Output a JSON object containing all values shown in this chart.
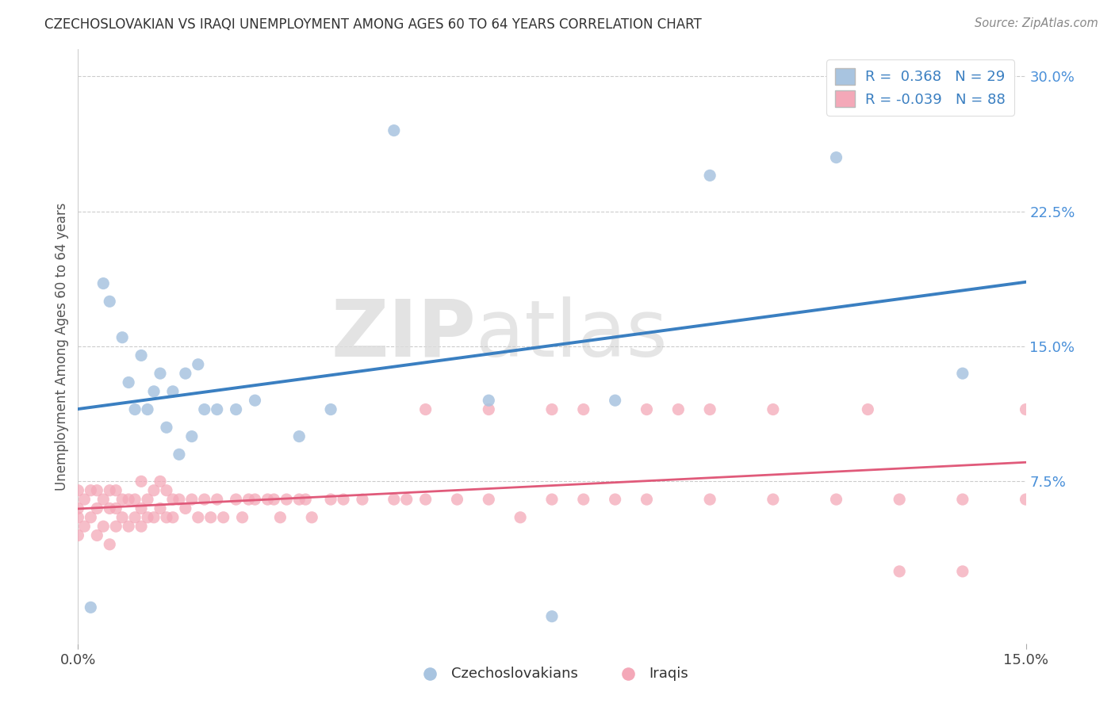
{
  "title": "CZECHOSLOVAKIAN VS IRAQI UNEMPLOYMENT AMONG AGES 60 TO 64 YEARS CORRELATION CHART",
  "source": "Source: ZipAtlas.com",
  "ylabel": "Unemployment Among Ages 60 to 64 years",
  "xlim": [
    0.0,
    0.15
  ],
  "ylim": [
    -0.015,
    0.315
  ],
  "ytick_vals": [
    0.075,
    0.15,
    0.225,
    0.3
  ],
  "ytick_labels": [
    "7.5%",
    "15.0%",
    "22.5%",
    "30.0%"
  ],
  "xtick_vals": [
    0.0,
    0.15
  ],
  "xtick_labels": [
    "0.0%",
    "15.0%"
  ],
  "R_czech": 0.368,
  "N_czech": 29,
  "R_iraqi": -0.039,
  "N_iraqi": 88,
  "color_czech": "#a8c4e0",
  "color_iraqi": "#f4a8b8",
  "line_color_czech": "#3a7fc1",
  "line_color_iraqi": "#e05a7a",
  "watermark_zip": "ZIP",
  "watermark_atlas": "atlas",
  "legend_labels": [
    "Czechoslovakians",
    "Iraqis"
  ],
  "czech_x": [
    0.002,
    0.004,
    0.005,
    0.007,
    0.008,
    0.009,
    0.01,
    0.011,
    0.012,
    0.013,
    0.014,
    0.015,
    0.016,
    0.017,
    0.018,
    0.019,
    0.02,
    0.022,
    0.025,
    0.028,
    0.035,
    0.04,
    0.05,
    0.065,
    0.075,
    0.085,
    0.1,
    0.12,
    0.14
  ],
  "czech_y": [
    0.005,
    0.185,
    0.175,
    0.155,
    0.13,
    0.115,
    0.145,
    0.115,
    0.125,
    0.135,
    0.105,
    0.125,
    0.09,
    0.135,
    0.1,
    0.14,
    0.115,
    0.115,
    0.115,
    0.12,
    0.1,
    0.115,
    0.27,
    0.12,
    0.0,
    0.12,
    0.245,
    0.255,
    0.135
  ],
  "iraqi_x": [
    0.0,
    0.0,
    0.0,
    0.0,
    0.001,
    0.001,
    0.002,
    0.002,
    0.003,
    0.003,
    0.003,
    0.004,
    0.004,
    0.005,
    0.005,
    0.005,
    0.006,
    0.006,
    0.006,
    0.007,
    0.007,
    0.008,
    0.008,
    0.009,
    0.009,
    0.01,
    0.01,
    0.01,
    0.011,
    0.011,
    0.012,
    0.012,
    0.013,
    0.013,
    0.014,
    0.014,
    0.015,
    0.015,
    0.016,
    0.017,
    0.018,
    0.019,
    0.02,
    0.021,
    0.022,
    0.023,
    0.025,
    0.026,
    0.027,
    0.028,
    0.03,
    0.031,
    0.032,
    0.033,
    0.035,
    0.036,
    0.037,
    0.04,
    0.042,
    0.045,
    0.05,
    0.052,
    0.055,
    0.06,
    0.065,
    0.07,
    0.075,
    0.08,
    0.085,
    0.09,
    0.1,
    0.11,
    0.12,
    0.13,
    0.14,
    0.15,
    0.055,
    0.065,
    0.08,
    0.095,
    0.1,
    0.11,
    0.125,
    0.13,
    0.14,
    0.15,
    0.075,
    0.09
  ],
  "iraqi_y": [
    0.045,
    0.055,
    0.06,
    0.07,
    0.05,
    0.065,
    0.055,
    0.07,
    0.045,
    0.06,
    0.07,
    0.05,
    0.065,
    0.04,
    0.06,
    0.07,
    0.05,
    0.06,
    0.07,
    0.055,
    0.065,
    0.05,
    0.065,
    0.055,
    0.065,
    0.05,
    0.06,
    0.075,
    0.055,
    0.065,
    0.055,
    0.07,
    0.06,
    0.075,
    0.055,
    0.07,
    0.055,
    0.065,
    0.065,
    0.06,
    0.065,
    0.055,
    0.065,
    0.055,
    0.065,
    0.055,
    0.065,
    0.055,
    0.065,
    0.065,
    0.065,
    0.065,
    0.055,
    0.065,
    0.065,
    0.065,
    0.055,
    0.065,
    0.065,
    0.065,
    0.065,
    0.065,
    0.065,
    0.065,
    0.065,
    0.055,
    0.065,
    0.065,
    0.065,
    0.065,
    0.065,
    0.065,
    0.065,
    0.065,
    0.065,
    0.065,
    0.115,
    0.115,
    0.115,
    0.115,
    0.115,
    0.115,
    0.115,
    0.025,
    0.025,
    0.115,
    0.115,
    0.115
  ]
}
